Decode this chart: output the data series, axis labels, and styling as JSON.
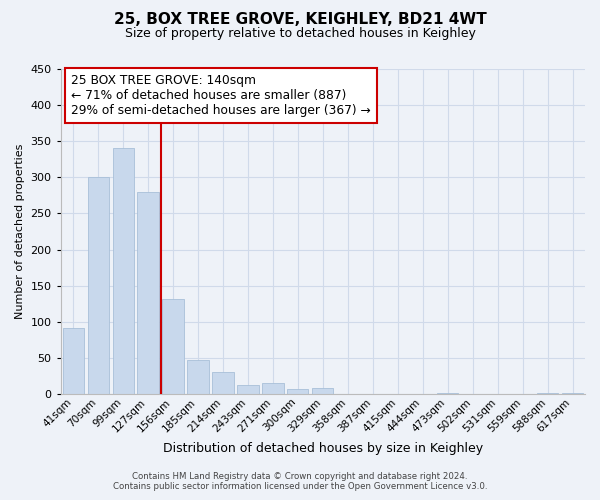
{
  "title": "25, BOX TREE GROVE, KEIGHLEY, BD21 4WT",
  "subtitle": "Size of property relative to detached houses in Keighley",
  "xlabel": "Distribution of detached houses by size in Keighley",
  "ylabel": "Number of detached properties",
  "bar_color": "#c8d8ec",
  "bar_edge_color": "#a8c0d8",
  "bin_labels": [
    "41sqm",
    "70sqm",
    "99sqm",
    "127sqm",
    "156sqm",
    "185sqm",
    "214sqm",
    "243sqm",
    "271sqm",
    "300sqm",
    "329sqm",
    "358sqm",
    "387sqm",
    "415sqm",
    "444sqm",
    "473sqm",
    "502sqm",
    "531sqm",
    "559sqm",
    "588sqm",
    "617sqm"
  ],
  "bar_heights": [
    92,
    301,
    340,
    280,
    131,
    47,
    30,
    13,
    15,
    7,
    9,
    0,
    0,
    0,
    0,
    2,
    0,
    0,
    0,
    1,
    2
  ],
  "vline_color": "#cc0000",
  "vline_pos": 3.5,
  "annotation_line1": "25 BOX TREE GROVE: 140sqm",
  "annotation_line2": "← 71% of detached houses are smaller (887)",
  "annotation_line3": "29% of semi-detached houses are larger (367) →",
  "ylim": [
    0,
    450
  ],
  "yticks": [
    0,
    50,
    100,
    150,
    200,
    250,
    300,
    350,
    400,
    450
  ],
  "footnote1": "Contains HM Land Registry data © Crown copyright and database right 2024.",
  "footnote2": "Contains public sector information licensed under the Open Government Licence v3.0.",
  "grid_color": "#d0daea",
  "background_color": "#eef2f8",
  "title_fontsize": 11,
  "subtitle_fontsize": 9,
  "ylabel_fontsize": 8,
  "xlabel_fontsize": 9,
  "ytick_fontsize": 8,
  "xtick_fontsize": 7.5
}
